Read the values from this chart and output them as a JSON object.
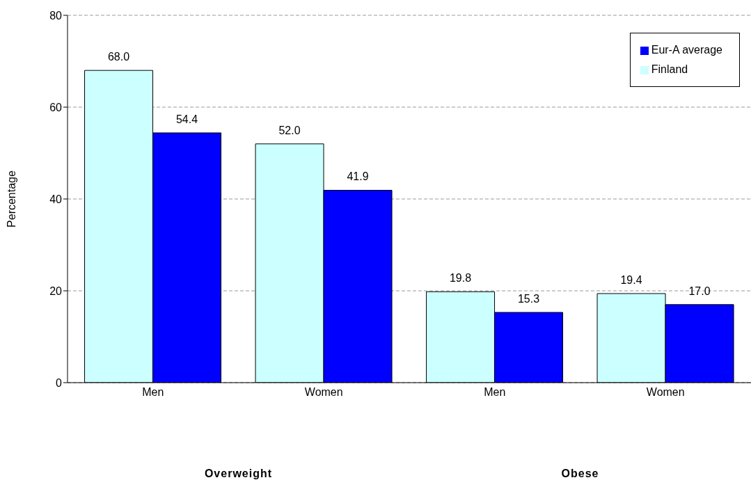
{
  "chart_data": {
    "type": "bar",
    "ylabel": "Percentage",
    "categories": [
      "Men",
      "Women",
      "Men",
      "Women"
    ],
    "series": [
      {
        "name": "Finland",
        "color": "#ccffff",
        "values": [
          68.0,
          52.0,
          19.8,
          19.4
        ],
        "value_labels": [
          "68.0",
          "52.0",
          "19.8",
          "19.4"
        ]
      },
      {
        "name": "Eur-A average",
        "color": "#0000ff",
        "values": [
          54.4,
          41.9,
          15.3,
          17.0
        ],
        "value_labels": [
          "54.4",
          "41.9",
          "15.3",
          "17.0"
        ]
      }
    ],
    "annotations": [
      "Overweight",
      "Obese"
    ],
    "ylim": [
      0,
      80
    ],
    "yticks": [
      0,
      20,
      40,
      60,
      80
    ],
    "grid": "y",
    "legend": "top right"
  }
}
